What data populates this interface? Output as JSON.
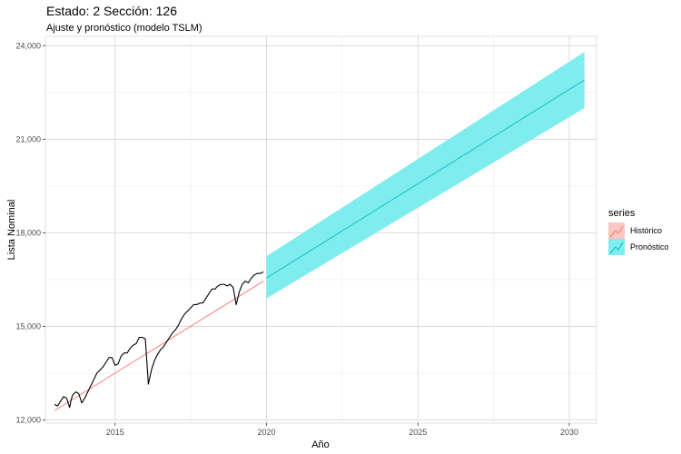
{
  "chart_data": {
    "type": "line",
    "title": "Estado: 2 Sección: 126",
    "subtitle": "Ajuste y pronóstico (modelo TSLM)",
    "xlabel": "Año",
    "ylabel": "Lista Nominal",
    "xlim": [
      2012.7,
      2030.9
    ],
    "ylim": [
      11900,
      24300
    ],
    "x_ticks": [
      2015,
      2020,
      2025,
      2030
    ],
    "x_tick_labels": [
      "2015",
      "2020",
      "2025",
      "2030"
    ],
    "y_ticks": [
      12000,
      15000,
      18000,
      21000,
      24000
    ],
    "y_tick_labels": [
      "12,000",
      "15,000",
      "18,000",
      "21,000",
      "24,000"
    ],
    "grid": true,
    "legend": {
      "title": "series",
      "position": "right",
      "entries": [
        {
          "label": "Histórico",
          "color": "#F8766D",
          "fill": "#F8C9C4"
        },
        {
          "label": "Pronóstico",
          "color": "#00BFC4",
          "fill": "#7FECEE"
        }
      ]
    },
    "series": [
      {
        "role": "observed",
        "color": "#000000",
        "x": [
          2013.0,
          2013.1,
          2013.2,
          2013.3,
          2013.4,
          2013.5,
          2013.55,
          2013.6,
          2013.7,
          2013.8,
          2013.9,
          2014.0,
          2014.1,
          2014.2,
          2014.3,
          2014.4,
          2014.5,
          2014.6,
          2014.7,
          2014.8,
          2014.9,
          2015.0,
          2015.1,
          2015.2,
          2015.3,
          2015.4,
          2015.5,
          2015.6,
          2015.7,
          2015.8,
          2015.9,
          2016.0,
          2016.1,
          2016.2,
          2016.3,
          2016.4,
          2016.5,
          2016.6,
          2016.7,
          2016.8,
          2016.9,
          2017.0,
          2017.1,
          2017.2,
          2017.3,
          2017.4,
          2017.5,
          2017.6,
          2017.7,
          2017.8,
          2017.9,
          2018.0,
          2018.1,
          2018.2,
          2018.3,
          2018.4,
          2018.5,
          2018.6,
          2018.7,
          2018.8,
          2018.9,
          2019.0,
          2019.1,
          2019.2,
          2019.3,
          2019.4,
          2019.5,
          2019.6,
          2019.7,
          2019.8,
          2019.9
        ],
        "values": [
          12500,
          12450,
          12600,
          12750,
          12700,
          12400,
          12650,
          12800,
          12900,
          12850,
          12550,
          12700,
          12900,
          13100,
          13300,
          13500,
          13600,
          13700,
          13850,
          14000,
          14000,
          13750,
          13800,
          14050,
          14150,
          14150,
          14300,
          14400,
          14450,
          14650,
          14650,
          14600,
          13150,
          13600,
          13900,
          14100,
          14250,
          14350,
          14500,
          14650,
          14800,
          14900,
          15050,
          15250,
          15400,
          15500,
          15600,
          15700,
          15700,
          15750,
          15750,
          15900,
          16050,
          16200,
          16200,
          16300,
          16350,
          16350,
          16300,
          16350,
          16250,
          15700,
          16100,
          16350,
          16450,
          16400,
          16550,
          16650,
          16700,
          16700,
          16750
        ]
      },
      {
        "name": "Histórico",
        "role": "fitted",
        "color": "#F8766D",
        "x": [
          2013.0,
          2019.9
        ],
        "values": [
          12300,
          16450
        ]
      },
      {
        "name": "Pronóstico",
        "role": "forecast",
        "color": "#00BFC4",
        "x": [
          2020.0,
          2030.5
        ],
        "values": [
          16550,
          22900
        ],
        "interval_lower": [
          15900,
          22000
        ],
        "interval_upper": [
          17250,
          23800
        ]
      }
    ]
  }
}
